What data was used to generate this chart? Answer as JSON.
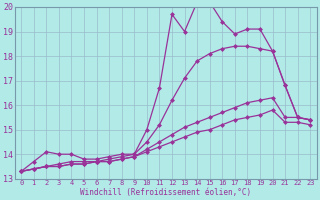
{
  "xlabel": "Windchill (Refroidissement éolien,°C)",
  "xlim": [
    -0.5,
    23.5
  ],
  "ylim": [
    13,
    20
  ],
  "yticks": [
    13,
    14,
    15,
    16,
    17,
    18,
    19,
    20
  ],
  "xticks": [
    0,
    1,
    2,
    3,
    4,
    5,
    6,
    7,
    8,
    9,
    10,
    11,
    12,
    13,
    14,
    15,
    16,
    17,
    18,
    19,
    20,
    21,
    22,
    23
  ],
  "bg_color": "#b2eae8",
  "grid_color": "#99bbcc",
  "line_color": "#993399",
  "line1_x": [
    0,
    1,
    2,
    3,
    4,
    5,
    6,
    7,
    8,
    9,
    10,
    11,
    12,
    13,
    14,
    15,
    16,
    17,
    18,
    19,
    20,
    21,
    22,
    23
  ],
  "line1_y": [
    13.3,
    13.7,
    14.1,
    14.0,
    14.0,
    13.8,
    13.8,
    13.9,
    14.0,
    14.0,
    15.0,
    16.7,
    19.7,
    19.0,
    20.2,
    20.2,
    19.4,
    18.9,
    19.1,
    19.1,
    18.2,
    16.8,
    15.5,
    15.4
  ],
  "line2_x": [
    0,
    1,
    2,
    3,
    4,
    5,
    6,
    7,
    8,
    9,
    10,
    11,
    12,
    13,
    14,
    15,
    16,
    17,
    18,
    19,
    20,
    21,
    22,
    23
  ],
  "line2_y": [
    13.3,
    13.4,
    13.5,
    13.6,
    13.7,
    13.7,
    13.7,
    13.8,
    13.9,
    14.0,
    14.5,
    15.2,
    16.2,
    17.1,
    17.8,
    18.1,
    18.3,
    18.4,
    18.4,
    18.3,
    18.2,
    16.8,
    15.5,
    15.4
  ],
  "line3_x": [
    0,
    1,
    2,
    3,
    4,
    5,
    6,
    7,
    8,
    9,
    10,
    11,
    12,
    13,
    14,
    15,
    16,
    17,
    18,
    19,
    20,
    21,
    22,
    23
  ],
  "line3_y": [
    13.3,
    13.4,
    13.5,
    13.5,
    13.6,
    13.6,
    13.7,
    13.7,
    13.8,
    13.9,
    14.2,
    14.5,
    14.8,
    15.1,
    15.3,
    15.5,
    15.7,
    15.9,
    16.1,
    16.2,
    16.3,
    15.5,
    15.5,
    15.4
  ],
  "line4_x": [
    0,
    1,
    2,
    3,
    4,
    5,
    6,
    7,
    8,
    9,
    10,
    11,
    12,
    13,
    14,
    15,
    16,
    17,
    18,
    19,
    20,
    21,
    22,
    23
  ],
  "line4_y": [
    13.3,
    13.4,
    13.5,
    13.5,
    13.6,
    13.6,
    13.7,
    13.7,
    13.8,
    13.9,
    14.1,
    14.3,
    14.5,
    14.7,
    14.9,
    15.0,
    15.2,
    15.4,
    15.5,
    15.6,
    15.8,
    15.3,
    15.3,
    15.2
  ],
  "markersize": 2.5,
  "linewidth": 0.9
}
